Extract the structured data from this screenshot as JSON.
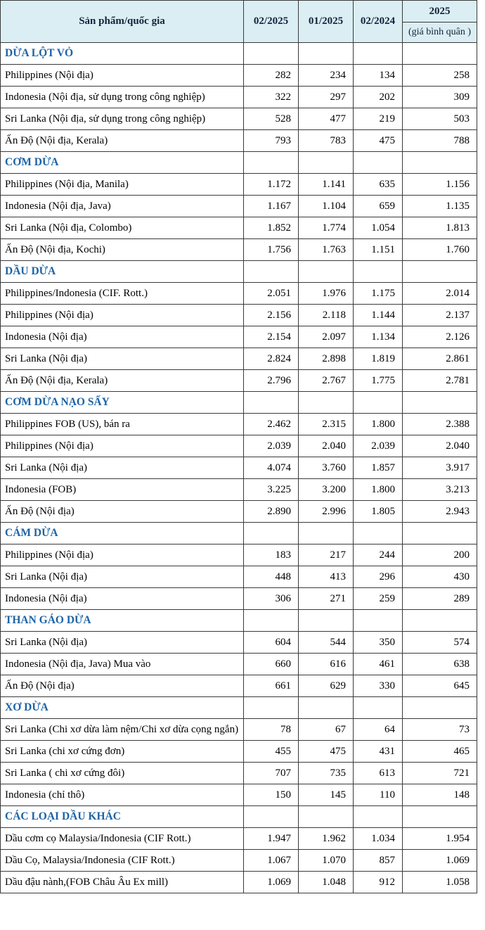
{
  "header": {
    "product": "Sản phẩm/quốc gia",
    "columns": [
      "02/2025",
      "01/2025",
      "02/2024"
    ],
    "avg_year": "2025",
    "avg_label": "(giá bình quân )"
  },
  "sections": [
    {
      "title": "DỪA LỘT VỎ",
      "rows": [
        {
          "label": "Philippines (Nội địa)",
          "values": [
            "282",
            "234",
            "134",
            "258"
          ]
        },
        {
          "label": "Indonesia (Nội địa, sử dụng trong công nghiệp)",
          "values": [
            "322",
            "297",
            "202",
            "309"
          ]
        },
        {
          "label": "Sri Lanka (Nội địa, sử dụng trong công nghiệp)",
          "values": [
            "528",
            "477",
            "219",
            "503"
          ]
        },
        {
          "label": "Ấn Độ (Nội địa, Kerala)",
          "values": [
            "793",
            "783",
            "475",
            "788"
          ]
        }
      ]
    },
    {
      "title": "CƠM DỪA",
      "rows": [
        {
          "label": "Philippines (Nội địa, Manila)",
          "values": [
            "1.172",
            "1.141",
            "635",
            "1.156"
          ]
        },
        {
          "label": "Indonesia (Nội địa, Java)",
          "values": [
            "1.167",
            "1.104",
            "659",
            "1.135"
          ]
        },
        {
          "label": "Sri Lanka (Nội địa, Colombo)",
          "values": [
            "1.852",
            "1.774",
            "1.054",
            "1.813"
          ]
        },
        {
          "label": "Ấn Độ (Nội địa, Kochi)",
          "values": [
            "1.756",
            "1.763",
            "1.151",
            "1.760"
          ]
        }
      ]
    },
    {
      "title": "DẦU DỪA",
      "rows": [
        {
          "label": "Philippines/Indonesia (CIF. Rott.)",
          "values": [
            "2.051",
            "1.976",
            "1.175",
            "2.014"
          ]
        },
        {
          "label": "Philippines (Nội địa)",
          "values": [
            "2.156",
            "2.118",
            "1.144",
            "2.137"
          ]
        },
        {
          "label": "Indonesia (Nội địa)",
          "values": [
            "2.154",
            "2.097",
            "1.134",
            "2.126"
          ]
        },
        {
          "label": "Sri Lanka (Nội địa)",
          "values": [
            "2.824",
            "2.898",
            "1.819",
            "2.861"
          ]
        },
        {
          "label": "Ấn Độ (Nội địa, Kerala)",
          "values": [
            "2.796",
            "2.767",
            "1.775",
            "2.781"
          ]
        }
      ]
    },
    {
      "title": "CƠM DỪA NẠO SẤY",
      "rows": [
        {
          "label": "Philippines FOB (US), bán ra",
          "values": [
            "2.462",
            "2.315",
            "1.800",
            "2.388"
          ]
        },
        {
          "label": "Philippines (Nội địa)",
          "values": [
            "2.039",
            "2.040",
            "2.039",
            "2.040"
          ]
        },
        {
          "label": "Sri Lanka (Nội địa)",
          "values": [
            "4.074",
            "3.760",
            "1.857",
            "3.917"
          ]
        },
        {
          "label": "Indonesia (FOB)",
          "values": [
            "3.225",
            "3.200",
            "1.800",
            "3.213"
          ]
        },
        {
          "label": "Ấn Độ (Nội địa)",
          "values": [
            "2.890",
            "2.996",
            "1.805",
            "2.943"
          ]
        }
      ]
    },
    {
      "title": "CÁM DỪA",
      "rows": [
        {
          "label": "Philippines (Nội địa)",
          "values": [
            "183",
            "217",
            "244",
            "200"
          ]
        },
        {
          "label": "Sri Lanka (Nội địa)",
          "values": [
            "448",
            "413",
            "296",
            "430"
          ]
        },
        {
          "label": "Indonesia (Nội địa)",
          "values": [
            "306",
            "271",
            "259",
            "289"
          ]
        }
      ]
    },
    {
      "title": "THAN GÁO DỪA",
      "rows": [
        {
          "label": "Sri Lanka (Nội địa)",
          "values": [
            "604",
            "544",
            "350",
            "574"
          ]
        },
        {
          "label": "Indonesia (Nội địa, Java) Mua vào",
          "values": [
            "660",
            "616",
            "461",
            "638"
          ]
        },
        {
          "label": "Ấn Độ (Nội địa)",
          "values": [
            "661",
            "629",
            "330",
            "645"
          ]
        }
      ]
    },
    {
      "title": "XƠ DỪA",
      "rows": [
        {
          "label": "Sri Lanka (Chi xơ dừa làm nệm/Chi xơ dừa cọng ngắn)",
          "values": [
            "78",
            "67",
            "64",
            "73"
          ]
        },
        {
          "label": "Sri Lanka (chi xơ cứng đơn)",
          "values": [
            "455",
            "475",
            "431",
            "465"
          ]
        },
        {
          "label": "Sri Lanka ( chi xơ cứng đôi)",
          "values": [
            "707",
            "735",
            "613",
            "721"
          ]
        },
        {
          "label": "Indonesia (chỉ thô)",
          "values": [
            "150",
            "145",
            "110",
            "148"
          ]
        }
      ]
    },
    {
      "title": "CÁC LOẠI DẦU KHÁC",
      "rows": [
        {
          "label": "Dầu cơm cọ Malaysia/Indonesia (CIF Rott.)",
          "values": [
            "1.947",
            "1.962",
            "1.034",
            "1.954"
          ]
        },
        {
          "label": "Dầu Cọ, Malaysia/Indonesia (CIF Rott.)",
          "values": [
            "1.067",
            "1.070",
            "857",
            "1.069"
          ]
        },
        {
          "label": "Dầu đậu nành,(FOB Châu Âu Ex mill)",
          "values": [
            "1.069",
            "1.048",
            "912",
            "1.058"
          ]
        }
      ]
    }
  ]
}
